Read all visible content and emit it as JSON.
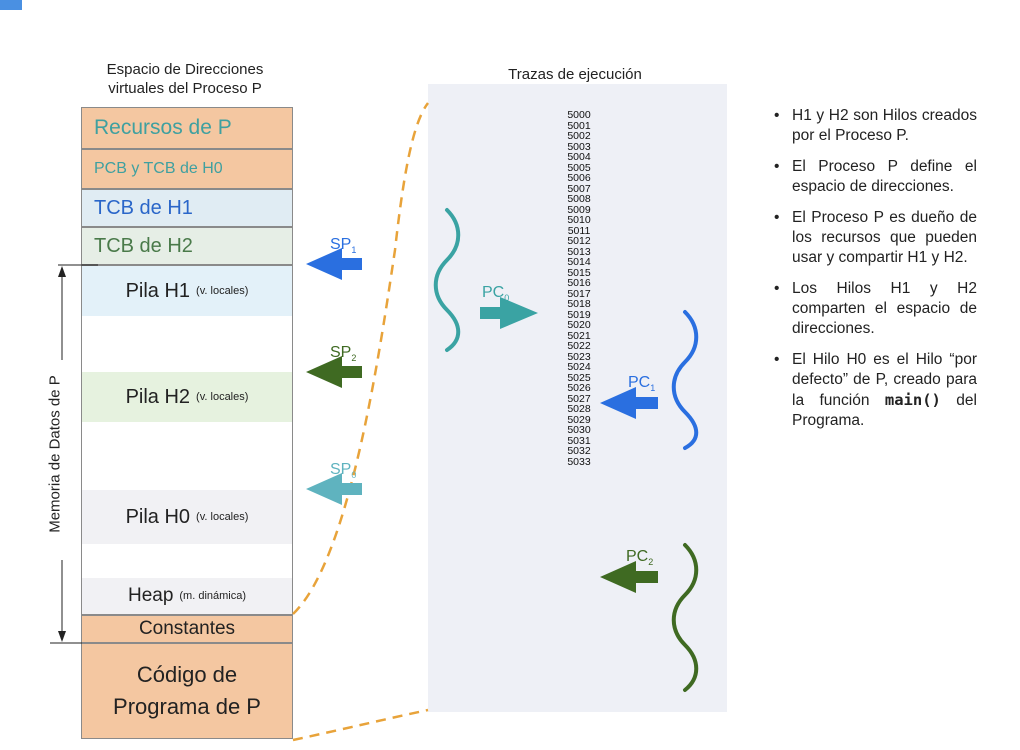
{
  "left_panel": {
    "title_line1": "Espacio de Direcciones",
    "title_line2": "virtuales del Proceso P",
    "segments": {
      "recursos": "Recursos de P",
      "pcb": "PCB y TCB de H0",
      "tcb_h1": "TCB de H1",
      "tcb_h2": "TCB de H2",
      "constantes": "Constantes",
      "codigo_line1": "Código de",
      "codigo_line2": "Programa de P"
    },
    "stacks": {
      "h1": "Pila H1",
      "h2": "Pila H2",
      "h0": "Pila H0",
      "note": "(v. locales)",
      "heap": "Heap",
      "heap_note": "(m. dinámica)"
    },
    "side_label": "Memoria de Datos de P",
    "pointers": {
      "sp1": "SP",
      "sp1_sub": "1",
      "sp2": "SP",
      "sp2_sub": "2",
      "sp0": "SP",
      "sp0_sub": "0"
    }
  },
  "trace_panel": {
    "title": "Trazas de ejecución",
    "addresses": [
      "5000",
      "5001",
      "5002",
      "5003",
      "5004",
      "5005",
      "5006",
      "5007",
      "5008",
      "5009",
      "5010",
      "5011",
      "5012",
      "5013",
      "5014",
      "5015",
      "5016",
      "5017",
      "5018",
      "5019",
      "5020",
      "5021",
      "5022",
      "5023",
      "5024",
      "5025",
      "5026",
      "5027",
      "5028",
      "5029",
      "5030",
      "5031",
      "5032",
      "5033"
    ],
    "pointers": {
      "pc0": "PC",
      "pc0_sub": "0",
      "pc1": "PC",
      "pc1_sub": "1",
      "pc2": "PC",
      "pc2_sub": "2"
    }
  },
  "bullets": [
    "H1 y H2 son Hilos creados por el Proceso P.",
    "El Proceso P define el espacio de direcciones.",
    "El Proceso P es dueño de los recursos que pueden usar y compartir H1 y H2.",
    "Los Hilos H1 y H2 comparten el espacio de direcciones."
  ],
  "bullet_last": {
    "before": "El Hilo H0 es el Hilo “por defecto” de P, creado para la función ",
    "code": "main()",
    "after": " del Programa."
  },
  "colors": {
    "teal": "#3aa3a3",
    "blue": "#2a6fe0",
    "green": "#4a7a2a",
    "orange_dash": "#e8a33a",
    "segment_fill": "#f4c7a1"
  }
}
